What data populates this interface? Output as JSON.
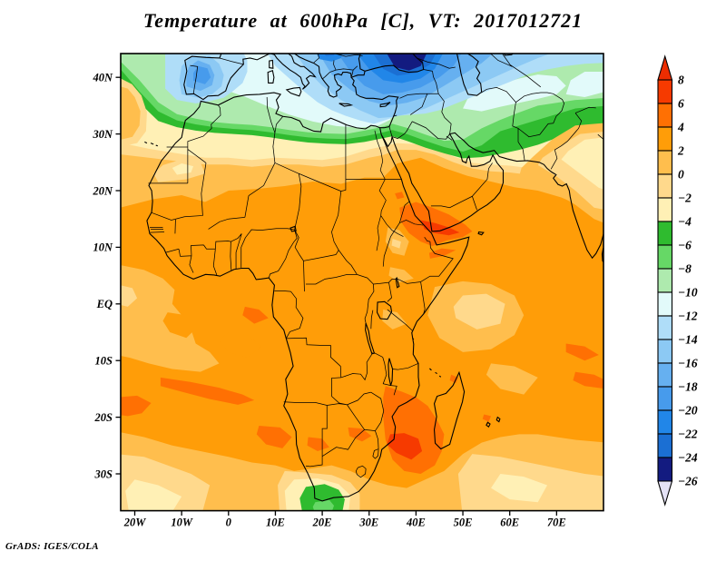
{
  "chart_data": {
    "type": "heatmap",
    "title": "Temperature at 600hPa [C], VT: 2017012721",
    "credit": "GrADS: IGES/COLA",
    "variable": "Temperature",
    "level": "600hPa",
    "units": "C",
    "valid_time": "2017012721",
    "map_extent": {
      "lon_min": -23,
      "lon_max": 80,
      "lat_min": -36.5,
      "lat_max": 44.2
    },
    "grid": "off",
    "x_ticks": [
      {
        "label": "20W",
        "lon": -20
      },
      {
        "label": "10W",
        "lon": -10
      },
      {
        "label": "0",
        "lon": 0
      },
      {
        "label": "10E",
        "lon": 10
      },
      {
        "label": "20E",
        "lon": 20
      },
      {
        "label": "30E",
        "lon": 30
      },
      {
        "label": "40E",
        "lon": 40
      },
      {
        "label": "50E",
        "lon": 50
      },
      {
        "label": "60E",
        "lon": 60
      },
      {
        "label": "70E",
        "lon": 70
      }
    ],
    "y_ticks": [
      {
        "label": "40N",
        "lat": 40
      },
      {
        "label": "30N",
        "lat": 30
      },
      {
        "label": "20N",
        "lat": 20
      },
      {
        "label": "10N",
        "lat": 10
      },
      {
        "label": "EQ",
        "lat": 0
      },
      {
        "label": "10S",
        "lat": -10
      },
      {
        "label": "20S",
        "lat": -20
      },
      {
        "label": "30S",
        "lat": -30
      }
    ],
    "colorbar": {
      "position": "right",
      "levels": [
        8,
        6,
        4,
        2,
        0,
        -2,
        -4,
        -6,
        -8,
        -10,
        -12,
        -14,
        -16,
        -18,
        -20,
        -22,
        -24,
        -26
      ],
      "tick_labels": [
        "8",
        "6",
        "4",
        "2",
        "0",
        "−2",
        "−4",
        "−6",
        "−8",
        "−10",
        "−12",
        "−14",
        "−16",
        "−18",
        "−20",
        "−22",
        "−24",
        "−26"
      ],
      "segment_colors": [
        "#EC2D01",
        "#F63A00",
        "#FF7003",
        "#FF9D08",
        "#FFBE4D",
        "#FFD98C",
        "#FFF0B5",
        "#2FBB2F",
        "#66D866",
        "#AEEAAE",
        "#E2FAFA",
        "#AFDDF8",
        "#8CC9F4",
        "#66B0F0",
        "#479BEC",
        "#2186E8",
        "#1B6FD3",
        "#131B80",
        "#E4E2F6"
      ]
    },
    "field_notes": [
      "Values of +2 to +4 C cover most of Africa and the tropical oceans",
      "Hot +4 to +8 C areas over the Horn of Africa / Gulf of Aden, the Mozambique Channel and the South Atlantic near 15S",
      "Cold trough −12 to −26 C across the Mediterranean, Turkey, the Black Sea and the Caucasus; coldest core below −26 C near eastern Turkey",
      "Green −4 to −10 C band along the North African coast through Arabia into Iran and Afghanistan",
      "Cool −4 to −8 C pocket at the Cape of South Africa; pale 0 to −4 C air over NW India and the subtropical oceans"
    ]
  }
}
